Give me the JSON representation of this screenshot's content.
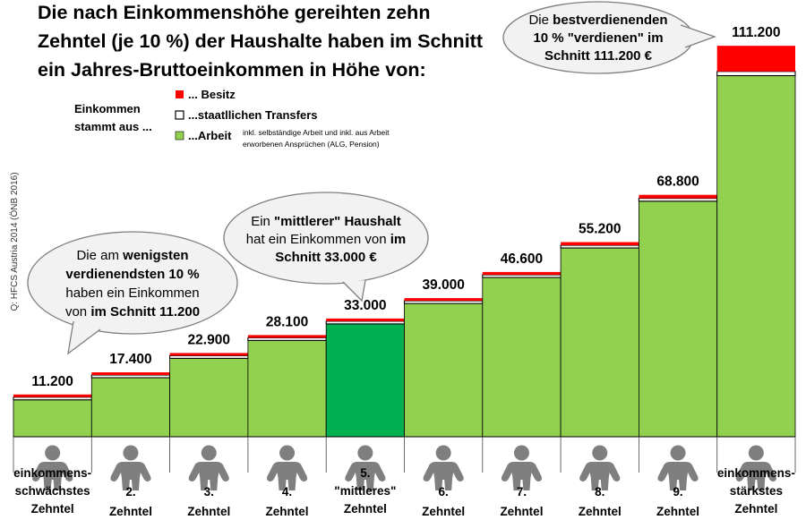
{
  "title": {
    "lines": [
      "Die nach Einkommenshöhe gereihten zehn",
      "Zehntel (je 10 %) der Haushalte haben im Schnitt",
      "ein Jahres-Bruttoeinkommen in Höhe von:"
    ]
  },
  "source": "Q: HFCS Austria 2014 (ÖNB 2016)",
  "legend": {
    "intro_lines": [
      "Einkommen",
      "stammt aus ..."
    ],
    "items": [
      {
        "key": "besitz",
        "label": "... Besitz",
        "color": "#ff0000"
      },
      {
        "key": "transfers",
        "label": "...staatllichen Transfers",
        "color": "#ffffff"
      },
      {
        "key": "arbeit",
        "label": "...Arbeit",
        "color": "#92d050",
        "note_lines": [
          "inkl. selbständige Arbeit und inkl. aus Arbeit",
          "erworbenen Ansprüchen (ALG, Pension)"
        ]
      }
    ]
  },
  "bubbles": {
    "lowest": {
      "lines": [
        [
          {
            "t": "Die am "
          },
          {
            "t": "wenigsten",
            "b": true
          }
        ],
        [
          {
            "t": "verdienendsten 10 %",
            "b": true
          }
        ],
        [
          {
            "t": "haben ein Einkommen"
          }
        ],
        [
          {
            "t": "von "
          },
          {
            "t": "im Schnitt 11.200",
            "b": true
          }
        ]
      ]
    },
    "middle": {
      "lines": [
        [
          {
            "t": "Ein "
          },
          {
            "t": "\"mittlerer\" Haushalt",
            "b": true
          }
        ],
        [
          {
            "t": "hat ein Einkommen von "
          },
          {
            "t": "im",
            "b": true
          }
        ],
        [
          {
            "t": "Schnitt 33.000 €",
            "b": true
          }
        ]
      ]
    },
    "highest": {
      "lines": [
        [
          {
            "t": "Die "
          },
          {
            "t": "bestverdienenden",
            "b": true
          }
        ],
        [
          {
            "t": "10 % \"verdienen\" im",
            "b": true
          }
        ],
        [
          {
            "t": "Schnitt 111.200 €",
            "b": true
          }
        ]
      ]
    }
  },
  "chart_data": {
    "type": "bar",
    "stacked": true,
    "ylim": [
      0,
      120000
    ],
    "grid": false,
    "legend_position": "top-left",
    "categories": [
      [
        "einkommens-",
        "schwächstes",
        "Zehntel"
      ],
      [
        "2.",
        "Zehntel"
      ],
      [
        "3.",
        "Zehntel"
      ],
      [
        "4.",
        "Zehntel"
      ],
      [
        "5.",
        "\"mittleres\"",
        "Zehntel"
      ],
      [
        "6.",
        "Zehntel"
      ],
      [
        "7.",
        "Zehntel"
      ],
      [
        "8.",
        "Zehntel"
      ],
      [
        "9.",
        "Zehntel"
      ],
      [
        "einkommens-",
        "stärkstes",
        "Zehntel"
      ]
    ],
    "value_labels": [
      "11.200",
      "17.400",
      "22.900",
      "28.100",
      "33.000",
      "39.000",
      "46.600",
      "55.200",
      "68.800",
      "111.200"
    ],
    "totals": [
      11200,
      17400,
      22900,
      28100,
      33000,
      39000,
      46600,
      55200,
      68800,
      111200
    ],
    "series": [
      {
        "key": "arbeit",
        "color": "#92d050",
        "values": [
          10500,
          16800,
          22300,
          27400,
          32100,
          37900,
          45300,
          53700,
          67000,
          102700
        ]
      },
      {
        "key": "transfers",
        "color": "#ffffff",
        "values": [
          400,
          400,
          400,
          400,
          400,
          500,
          500,
          600,
          800,
          1200
        ]
      },
      {
        "key": "besitz",
        "color": "#ff0000",
        "values": [
          300,
          200,
          200,
          300,
          500,
          600,
          800,
          900,
          1000,
          7300
        ]
      }
    ],
    "highlight_index": 4,
    "highlight_color": "#00b050"
  }
}
